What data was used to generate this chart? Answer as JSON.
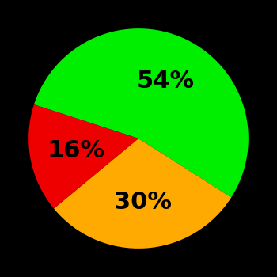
{
  "slices": [
    54,
    30,
    16
  ],
  "colors": [
    "#00ee00",
    "#ffaa00",
    "#ee0000"
  ],
  "labels": [
    "54%",
    "30%",
    "16%"
  ],
  "background_color": "#000000",
  "startangle": 162,
  "figsize": [
    3.5,
    3.5
  ],
  "dpi": 100,
  "label_r": 0.58,
  "label_fontsize": 22
}
